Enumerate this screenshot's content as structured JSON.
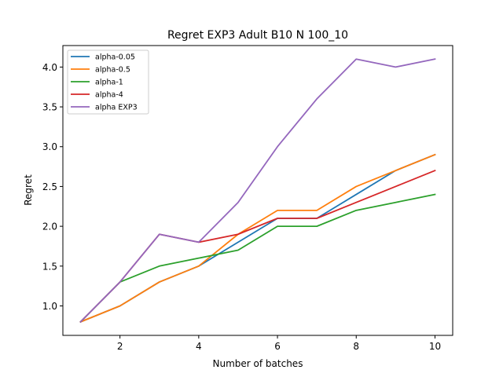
{
  "chart_data": {
    "type": "line",
    "title": "Regret EXP3 Adult B10 N 100_10",
    "xlabel": "Number of batches",
    "ylabel": "Regret",
    "x": [
      1,
      2,
      3,
      4,
      5,
      6,
      7,
      8,
      9,
      10
    ],
    "xlim": [
      0.55,
      10.45
    ],
    "ylim": [
      0.63,
      4.27
    ],
    "xticks": [
      2,
      4,
      6,
      8,
      10
    ],
    "xtick_labels": [
      "2",
      "4",
      "6",
      "8",
      "10"
    ],
    "yticks": [
      1.0,
      1.5,
      2.0,
      2.5,
      3.0,
      3.5,
      4.0
    ],
    "ytick_labels": [
      "1.0",
      "1.5",
      "2.0",
      "2.5",
      "3.0",
      "3.5",
      "4.0"
    ],
    "grid": false,
    "legend_position": "top-left",
    "series": [
      {
        "name": "alpha-0.05",
        "color": "#1f77b4",
        "values": [
          0.8,
          1.0,
          1.3,
          1.5,
          1.8,
          2.1,
          2.1,
          2.4,
          2.7,
          2.9
        ]
      },
      {
        "name": "alpha-0.5",
        "color": "#ff7f0e",
        "values": [
          0.8,
          1.0,
          1.3,
          1.5,
          1.9,
          2.2,
          2.2,
          2.5,
          2.7,
          2.9
        ]
      },
      {
        "name": "alpha-1",
        "color": "#2ca02c",
        "values": [
          0.8,
          1.3,
          1.5,
          1.6,
          1.7,
          2.0,
          2.0,
          2.2,
          2.3,
          2.4
        ]
      },
      {
        "name": "alpha-4",
        "color": "#d62728",
        "values": [
          0.8,
          1.3,
          1.9,
          1.8,
          1.9,
          2.1,
          2.1,
          2.3,
          2.5,
          2.7
        ]
      },
      {
        "name": "alpha EXP3",
        "color": "#9467bd",
        "values": [
          0.8,
          1.3,
          1.9,
          1.8,
          2.3,
          3.0,
          3.6,
          4.1,
          4.0,
          4.1
        ]
      }
    ]
  }
}
